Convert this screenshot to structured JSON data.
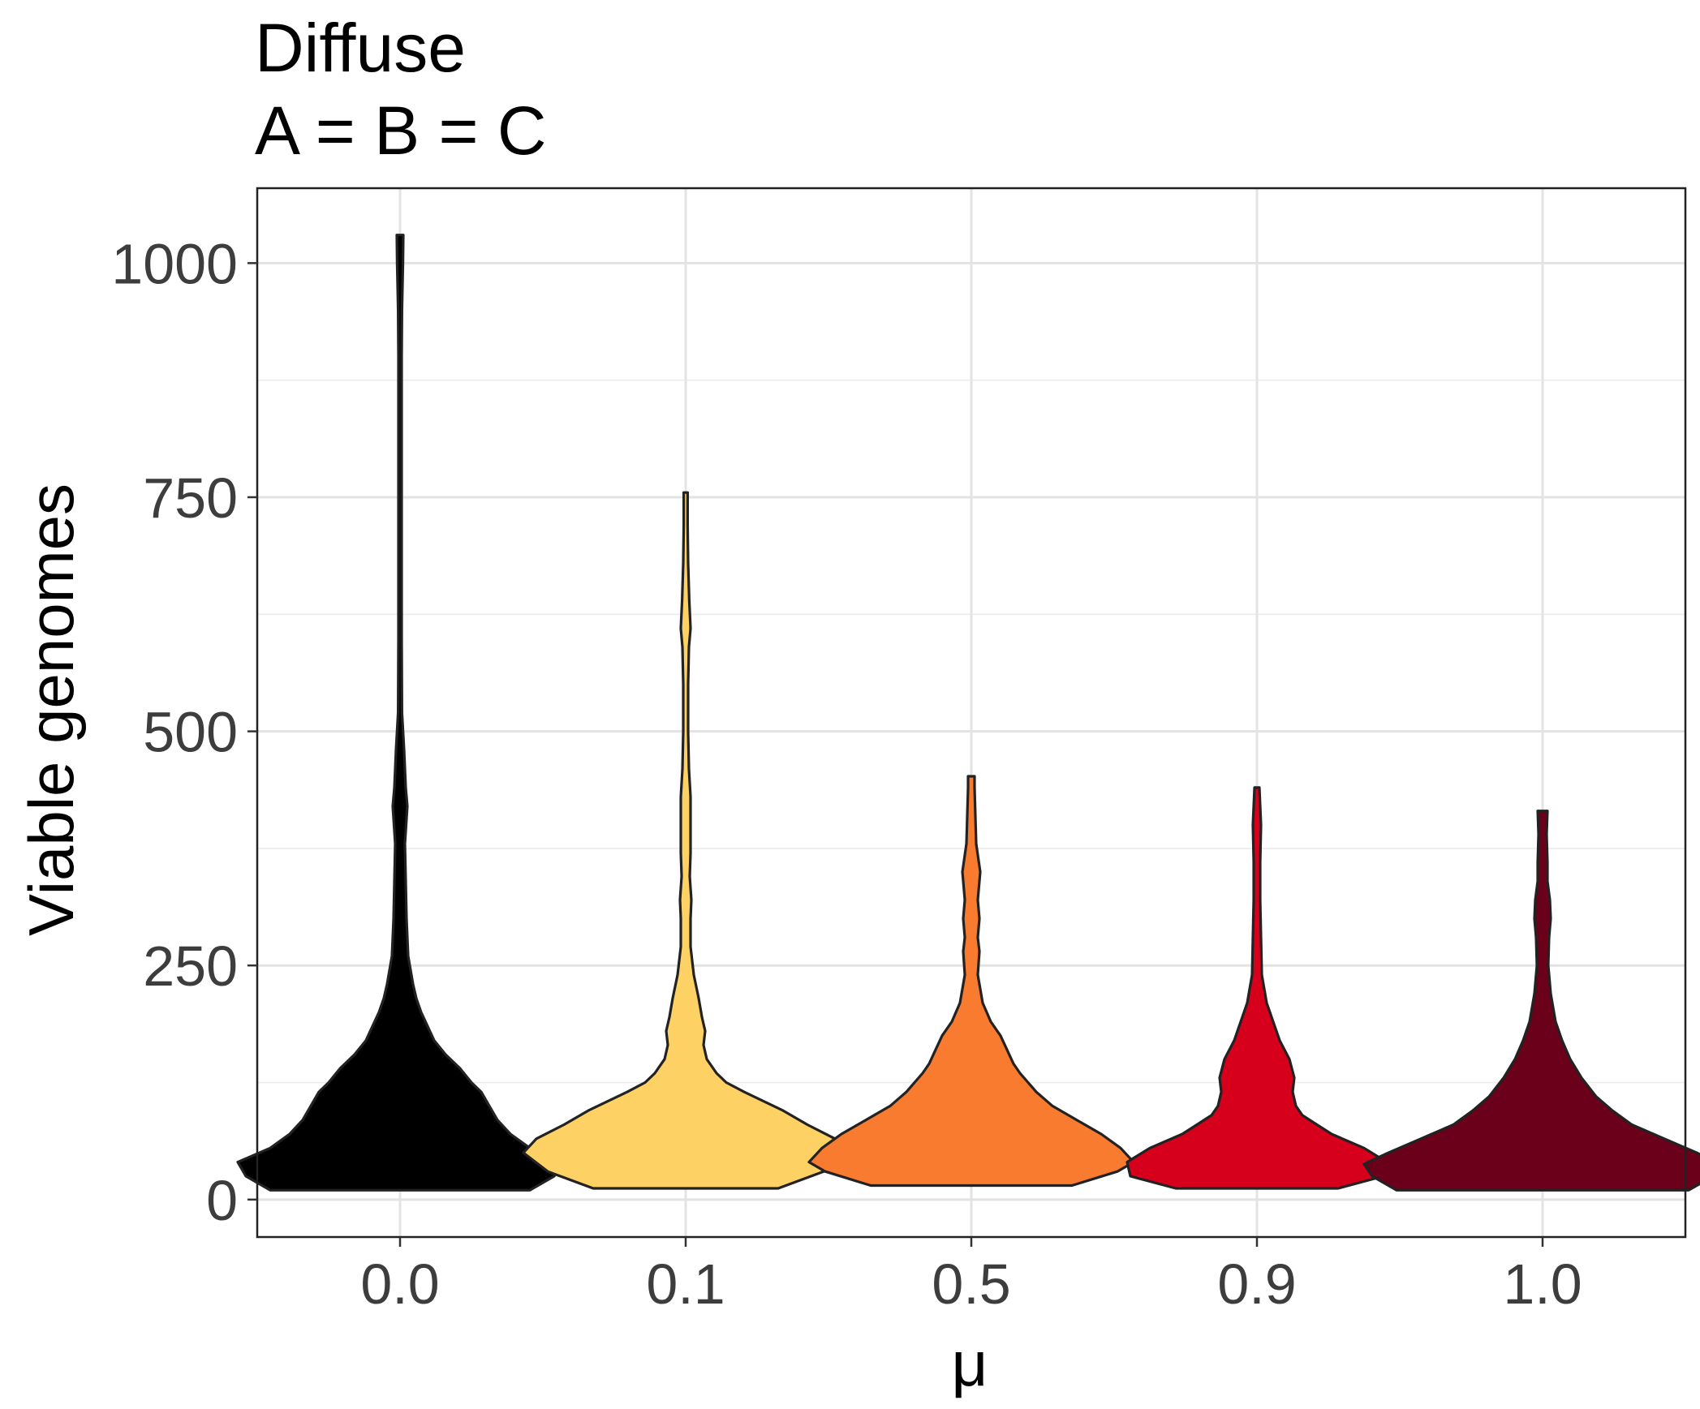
{
  "chart_data": {
    "type": "violin",
    "title": "Diffuse",
    "subtitle": "A = B = C",
    "xlabel": "μ",
    "ylabel": "Viable genomes",
    "categories": [
      "0.0",
      "0.1",
      "0.5",
      "0.9",
      "1.0"
    ],
    "ylim": [
      -40,
      1080
    ],
    "yticks": [
      0,
      250,
      500,
      750,
      1000
    ],
    "ytick_labels": [
      "0",
      "250",
      "500",
      "750",
      "1000"
    ],
    "grid": true,
    "legend": "none",
    "series": [
      {
        "category": "0.0",
        "color": "#000000",
        "profile": [
          [
            10,
            0.8
          ],
          [
            25,
            0.95
          ],
          [
            40,
            1.0
          ],
          [
            55,
            0.8
          ],
          [
            70,
            0.68
          ],
          [
            85,
            0.6
          ],
          [
            100,
            0.55
          ],
          [
            115,
            0.5
          ],
          [
            125,
            0.44
          ],
          [
            140,
            0.37
          ],
          [
            155,
            0.28
          ],
          [
            170,
            0.21
          ],
          [
            185,
            0.17
          ],
          [
            200,
            0.13
          ],
          [
            215,
            0.1
          ],
          [
            230,
            0.08
          ],
          [
            245,
            0.065
          ],
          [
            260,
            0.05
          ],
          [
            300,
            0.04
          ],
          [
            340,
            0.035
          ],
          [
            380,
            0.03
          ],
          [
            420,
            0.045
          ],
          [
            440,
            0.035
          ],
          [
            480,
            0.025
          ],
          [
            520,
            0.012
          ],
          [
            600,
            0.01
          ],
          [
            700,
            0.01
          ],
          [
            800,
            0.01
          ],
          [
            900,
            0.01
          ],
          [
            950,
            0.012
          ],
          [
            1000,
            0.018
          ],
          [
            1030,
            0.02
          ]
        ]
      },
      {
        "category": "0.1",
        "color": "#fed165",
        "profile": [
          [
            12,
            0.57
          ],
          [
            30,
            0.85
          ],
          [
            50,
            1.0
          ],
          [
            65,
            0.92
          ],
          [
            80,
            0.75
          ],
          [
            95,
            0.6
          ],
          [
            105,
            0.48
          ],
          [
            115,
            0.36
          ],
          [
            125,
            0.25
          ],
          [
            135,
            0.19
          ],
          [
            150,
            0.13
          ],
          [
            165,
            0.11
          ],
          [
            180,
            0.12
          ],
          [
            195,
            0.1
          ],
          [
            215,
            0.08
          ],
          [
            240,
            0.05
          ],
          [
            270,
            0.03
          ],
          [
            300,
            0.03
          ],
          [
            320,
            0.035
          ],
          [
            345,
            0.025
          ],
          [
            370,
            0.03
          ],
          [
            400,
            0.03
          ],
          [
            430,
            0.03
          ],
          [
            460,
            0.02
          ],
          [
            500,
            0.015
          ],
          [
            550,
            0.015
          ],
          [
            590,
            0.02
          ],
          [
            610,
            0.03
          ],
          [
            640,
            0.022
          ],
          [
            680,
            0.015
          ],
          [
            720,
            0.012
          ],
          [
            755,
            0.012
          ]
        ]
      },
      {
        "category": "0.5",
        "color": "#f97b30",
        "profile": [
          [
            15,
            0.62
          ],
          [
            30,
            0.9
          ],
          [
            40,
            1.0
          ],
          [
            55,
            0.92
          ],
          [
            70,
            0.8
          ],
          [
            85,
            0.65
          ],
          [
            100,
            0.5
          ],
          [
            115,
            0.4
          ],
          [
            125,
            0.35
          ],
          [
            135,
            0.3
          ],
          [
            145,
            0.26
          ],
          [
            160,
            0.22
          ],
          [
            175,
            0.18
          ],
          [
            190,
            0.12
          ],
          [
            210,
            0.07
          ],
          [
            240,
            0.04
          ],
          [
            265,
            0.05
          ],
          [
            280,
            0.04
          ],
          [
            300,
            0.05
          ],
          [
            320,
            0.04
          ],
          [
            350,
            0.055
          ],
          [
            380,
            0.03
          ],
          [
            410,
            0.025
          ],
          [
            440,
            0.02
          ],
          [
            452,
            0.02
          ]
        ]
      },
      {
        "category": "0.9",
        "color": "#d7001c",
        "profile": [
          [
            12,
            0.5
          ],
          [
            25,
            0.78
          ],
          [
            40,
            0.8
          ],
          [
            55,
            0.66
          ],
          [
            70,
            0.46
          ],
          [
            80,
            0.37
          ],
          [
            90,
            0.28
          ],
          [
            100,
            0.24
          ],
          [
            115,
            0.22
          ],
          [
            130,
            0.23
          ],
          [
            150,
            0.2
          ],
          [
            170,
            0.14
          ],
          [
            190,
            0.1
          ],
          [
            210,
            0.06
          ],
          [
            240,
            0.03
          ],
          [
            280,
            0.025
          ],
          [
            320,
            0.02
          ],
          [
            360,
            0.02
          ],
          [
            400,
            0.025
          ],
          [
            440,
            0.015
          ]
        ]
      },
      {
        "category": "1.0",
        "color": "#6a001a",
        "profile": [
          [
            10,
            0.9
          ],
          [
            25,
            1.05
          ],
          [
            38,
            1.1
          ],
          [
            50,
            0.95
          ],
          [
            65,
            0.75
          ],
          [
            80,
            0.55
          ],
          [
            95,
            0.43
          ],
          [
            110,
            0.33
          ],
          [
            130,
            0.24
          ],
          [
            150,
            0.17
          ],
          [
            170,
            0.12
          ],
          [
            190,
            0.08
          ],
          [
            220,
            0.05
          ],
          [
            250,
            0.035
          ],
          [
            280,
            0.04
          ],
          [
            300,
            0.05
          ],
          [
            320,
            0.045
          ],
          [
            340,
            0.03
          ],
          [
            360,
            0.03
          ],
          [
            390,
            0.025
          ],
          [
            415,
            0.03
          ]
        ]
      }
    ]
  }
}
